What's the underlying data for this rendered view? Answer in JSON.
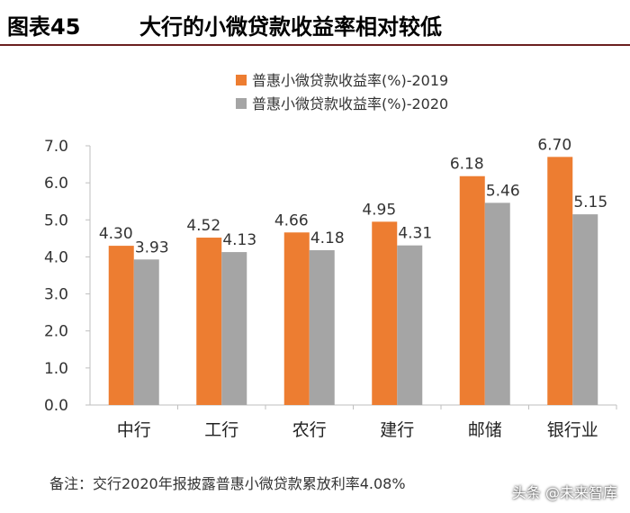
{
  "header": {
    "figure_number": "图表45",
    "title": "大行的小微贷款收益率相对较低"
  },
  "chart_data": {
    "type": "bar",
    "categories": [
      "中行",
      "工行",
      "农行",
      "建行",
      "邮储",
      "银行业"
    ],
    "series": [
      {
        "name": "普惠小微贷款收益率(%)-2019",
        "values": [
          4.3,
          4.52,
          4.66,
          4.95,
          6.18,
          6.7
        ],
        "color": "#ed7d31"
      },
      {
        "name": "普惠小微贷款收益率(%)-2020",
        "values": [
          3.93,
          4.13,
          4.18,
          4.31,
          5.46,
          5.15
        ],
        "color": "#a5a5a5"
      }
    ],
    "ylim": [
      0,
      7
    ],
    "yticks": [
      "0.0",
      "1.0",
      "2.0",
      "3.0",
      "4.0",
      "5.0",
      "6.0",
      "7.0"
    ],
    "grid": false,
    "legend_position": "top-center"
  },
  "footer": {
    "note": "备注：交行2020年报披露普惠小微贷款累放利率4.08%",
    "watermark": "头条 @未来智库"
  }
}
